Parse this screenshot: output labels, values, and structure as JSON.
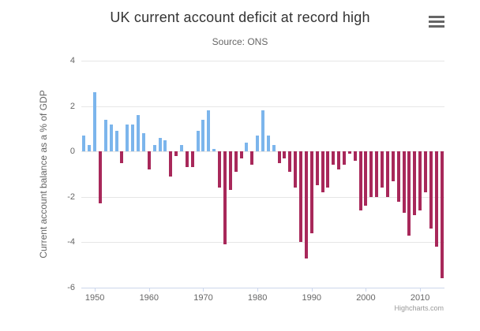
{
  "header": {
    "title": "UK current account deficit at record high",
    "subtitle": "Source: ONS"
  },
  "menu": {
    "icon": "hamburger-icon"
  },
  "credits": {
    "label": "Highcharts.com"
  },
  "chart_data": {
    "type": "bar",
    "title": "UK current account deficit at record high",
    "subtitle": "Source: ONS",
    "xlabel": "",
    "ylabel": "Current account balance as a % of GDP",
    "ylim": [
      -6,
      4
    ],
    "yticks": [
      4,
      2,
      0,
      -2,
      -4,
      -6
    ],
    "xticks": [
      1950,
      1960,
      1970,
      1980,
      1990,
      2000,
      2010
    ],
    "grid": "on",
    "legend": "off",
    "x": [
      1948,
      1949,
      1950,
      1951,
      1952,
      1953,
      1954,
      1955,
      1956,
      1957,
      1958,
      1959,
      1960,
      1961,
      1962,
      1963,
      1964,
      1965,
      1966,
      1967,
      1968,
      1969,
      1970,
      1971,
      1972,
      1973,
      1974,
      1975,
      1976,
      1977,
      1978,
      1979,
      1980,
      1981,
      1982,
      1983,
      1984,
      1985,
      1986,
      1987,
      1988,
      1989,
      1990,
      1991,
      1992,
      1993,
      1994,
      1995,
      1996,
      1997,
      1998,
      1999,
      2000,
      2001,
      2002,
      2003,
      2004,
      2005,
      2006,
      2007,
      2008,
      2009,
      2010,
      2011,
      2012,
      2013,
      2014
    ],
    "values": [
      0.7,
      0.3,
      2.6,
      -2.3,
      1.4,
      1.2,
      0.9,
      -0.5,
      1.2,
      1.2,
      1.6,
      0.8,
      -0.8,
      0.3,
      0.6,
      0.5,
      -1.1,
      -0.2,
      0.3,
      -0.7,
      -0.7,
      0.9,
      1.4,
      1.8,
      0.1,
      -1.6,
      -4.1,
      -1.7,
      -0.9,
      -0.3,
      0.4,
      -0.6,
      0.7,
      1.8,
      0.7,
      0.3,
      -0.5,
      -0.3,
      -0.9,
      -1.6,
      -4.0,
      -4.7,
      -3.6,
      -1.5,
      -1.8,
      -1.6,
      -0.6,
      -0.8,
      -0.6,
      -0.1,
      -0.4,
      -2.6,
      -2.4,
      -2.0,
      -2.0,
      -1.6,
      -2.0,
      -1.3,
      -2.2,
      -2.7,
      -3.7,
      -2.8,
      -2.6,
      -1.8,
      -3.4,
      -4.2,
      -5.6
    ],
    "colors": {
      "positive": "#7cb5ec",
      "negative": "#a8285a"
    },
    "axis_line_color": "#ccd6eb",
    "grid_color": "#e6e6e6",
    "credits": "Highcharts.com"
  }
}
